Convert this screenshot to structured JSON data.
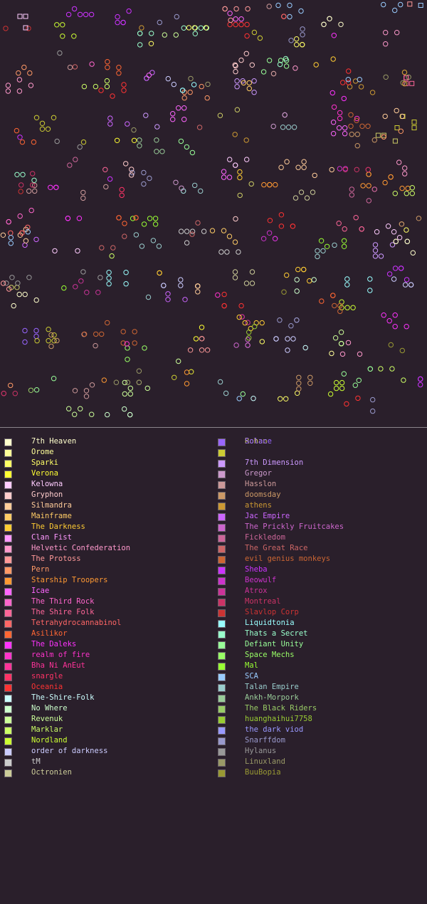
{
  "legend": [
    {
      "name": "7th Heaven",
      "color": "#ffffcc"
    },
    {
      "name": "Orome",
      "color": "#ffff99"
    },
    {
      "name": "Sparki",
      "color": "#ffff66"
    },
    {
      "name": "Verona",
      "color": "#ffff33"
    },
    {
      "name": "Kelowna",
      "color": "#ffccff"
    },
    {
      "name": "Gryphon",
      "color": "#ffcccc"
    },
    {
      "name": "Silmandra",
      "color": "#ffcc99"
    },
    {
      "name": "Mainframe",
      "color": "#ffcc66"
    },
    {
      "name": "The Darkness",
      "color": "#ffcc33"
    },
    {
      "name": "Clan Fist",
      "color": "#ff99ff"
    },
    {
      "name": "Helvetic Confederation",
      "color": "#ff99cc"
    },
    {
      "name": "The Protoss",
      "color": "#ff9999"
    },
    {
      "name": "Pern",
      "color": "#ff9966"
    },
    {
      "name": "Starship Troopers",
      "color": "#ff9933"
    },
    {
      "name": "Icae",
      "color": "#ff66ff"
    },
    {
      "name": "The Third Rock",
      "color": "#ff66cc"
    },
    {
      "name": "The Shire Folk",
      "color": "#ff6699"
    },
    {
      "name": "Tetrahydrocannabinol",
      "color": "#ff6666"
    },
    {
      "name": "Asilikor",
      "color": "#ff6633"
    },
    {
      "name": "The Daleks",
      "color": "#ff33ff"
    },
    {
      "name": "realm of fire",
      "color": "#ff33cc"
    },
    {
      "name": "Bha Ni AnEut",
      "color": "#ff3399"
    },
    {
      "name": "snargle",
      "color": "#ff3366"
    },
    {
      "name": "Oceania",
      "color": "#ff3333"
    },
    {
      "name": "The-Shire-Folk",
      "color": "#ccffff"
    },
    {
      "name": "No Where",
      "color": "#ccffcc"
    },
    {
      "name": "Revenuk",
      "color": "#ccff99"
    },
    {
      "name": "Marklar",
      "color": "#ccff66"
    },
    {
      "name": "Nordland",
      "color": "#ccff33"
    },
    {
      "name": "order of darkness",
      "color": "#ccccff"
    },
    {
      "name": "tM",
      "color": "#cccccc"
    },
    {
      "name": "Octronien",
      "color": "#cccc99"
    },
    {
      "name": "Rohan",
      "color": "#cccc66"
    },
    {
      "name": "",
      "color": "#cccc33"
    },
    {
      "name": "7th Dimension",
      "color": "#cc99ff"
    },
    {
      "name": "Gregor",
      "color": "#cc99cc"
    },
    {
      "name": "Hasslon",
      "color": "#cc9999"
    },
    {
      "name": "doomsday",
      "color": "#cc9966"
    },
    {
      "name": "athens",
      "color": "#cc9933"
    },
    {
      "name": "Jac Empire",
      "color": "#cc66ff"
    },
    {
      "name": "The Prickly Fruitcakes",
      "color": "#cc66cc"
    },
    {
      "name": "Fickledom",
      "color": "#cc6699"
    },
    {
      "name": "The Great Race",
      "color": "#cc6666"
    },
    {
      "name": "evil genius monkeys",
      "color": "#cc6633"
    },
    {
      "name": "Sheba",
      "color": "#cc33ff"
    },
    {
      "name": "Beowulf",
      "color": "#cc33cc"
    },
    {
      "name": "Atrox",
      "color": "#cc3399"
    },
    {
      "name": "Montreal",
      "color": "#cc3366"
    },
    {
      "name": "Slavlop Corp",
      "color": "#cc3333"
    },
    {
      "name": "Liquidtonia",
      "color": "#99ffff"
    },
    {
      "name": "Thats a Secret",
      "color": "#99ffcc"
    },
    {
      "name": "Defiant Unity",
      "color": "#99ff99"
    },
    {
      "name": "Space Mechs",
      "color": "#99ff66"
    },
    {
      "name": "Mal",
      "color": "#99ff33"
    },
    {
      "name": "SCA",
      "color": "#99ccff"
    },
    {
      "name": "Talan Empire",
      "color": "#99cccc"
    },
    {
      "name": "Ankh-Morpork",
      "color": "#99cc99"
    },
    {
      "name": "The Black Riders",
      "color": "#99cc66"
    },
    {
      "name": "huanghaihui7758",
      "color": "#99cc33"
    },
    {
      "name": "the dark viod",
      "color": "#9999ff"
    },
    {
      "name": "Snarffdom",
      "color": "#9999cc"
    },
    {
      "name": "Hylanus",
      "color": "#999999"
    },
    {
      "name": "Linuxland",
      "color": "#999966"
    },
    {
      "name": "BuuBopia",
      "color": "#999933"
    },
    {
      "name": "Solace",
      "color": "#9966ff"
    }
  ]
}
